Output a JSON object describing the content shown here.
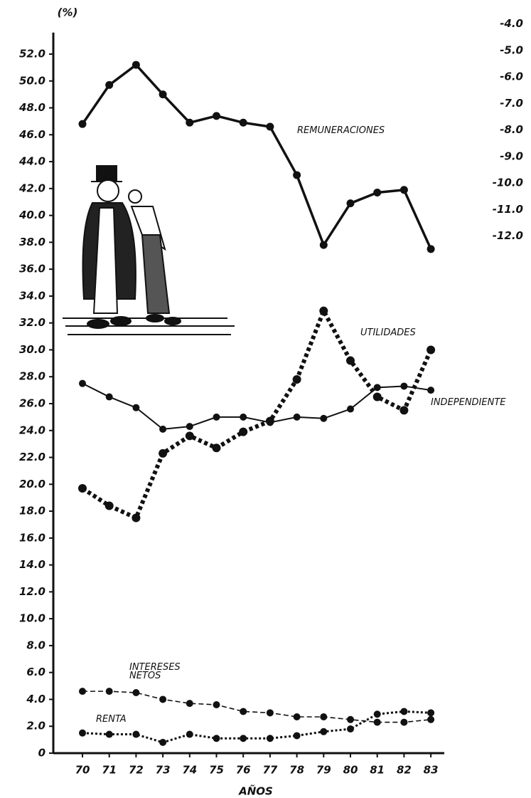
{
  "chart_data": {
    "type": "line",
    "y_label": "(%)",
    "x_label": "AÑOS",
    "categories": [
      "70",
      "71",
      "72",
      "73",
      "74",
      "75",
      "76",
      "77",
      "78",
      "79",
      "80",
      "81",
      "82",
      "83"
    ],
    "ylim": [
      0,
      53.6
    ],
    "yticks": [
      0,
      {
        "value": 2,
        "label": "2.0"
      },
      {
        "value": 4,
        "label": "4.0"
      },
      {
        "value": 6,
        "label": "6.0"
      },
      {
        "value": 8,
        "label": "8.0"
      },
      {
        "value": 10,
        "label": "10.0"
      },
      {
        "value": 12,
        "label": "12.0"
      },
      {
        "value": 14,
        "label": "14.0"
      },
      {
        "value": 16,
        "label": "16.0"
      },
      {
        "value": 18,
        "label": "18.0"
      },
      {
        "value": 20,
        "label": "20.0"
      },
      {
        "value": 22,
        "label": "22.0"
      },
      {
        "value": 24,
        "label": "24.0"
      },
      {
        "value": 26,
        "label": "26.0"
      },
      {
        "value": 28,
        "label": "28.0"
      },
      {
        "value": 30,
        "label": "30.0"
      },
      {
        "value": 32,
        "label": "32.0"
      },
      {
        "value": 34,
        "label": "34.0"
      },
      {
        "value": 36,
        "label": "36.0"
      },
      {
        "value": 38,
        "label": "38.0"
      },
      {
        "value": 40,
        "label": "40.0"
      },
      {
        "value": 42,
        "label": "42.0"
      },
      {
        "value": 44,
        "label": "44.0"
      },
      {
        "value": 46,
        "label": "46.0"
      },
      {
        "value": 48,
        "label": "48.0"
      },
      {
        "value": 50,
        "label": "50.0"
      },
      {
        "value": 52,
        "label": "52.0"
      }
    ],
    "y2lim": [
      -31.5,
      -3.1
    ],
    "y2ticks": [
      {
        "value": -4,
        "label": "-4.0"
      },
      {
        "value": -5,
        "label": "-5.0"
      },
      {
        "value": -6,
        "label": "-6.0"
      },
      {
        "value": -7,
        "label": "-7.0"
      },
      {
        "value": -8,
        "label": "-8.0"
      },
      {
        "value": -9,
        "label": "-9.0"
      },
      {
        "value": -10,
        "label": "-10.0"
      },
      {
        "value": -11,
        "label": "-11.0"
      },
      {
        "value": -12,
        "label": "-12.0"
      }
    ],
    "series": [
      {
        "name": "REMUNERACIONES",
        "color": "#111111",
        "line_style": "solid",
        "values": [
          46.8,
          49.7,
          51.2,
          49.0,
          46.9,
          47.4,
          46.9,
          46.6,
          43.0,
          37.8,
          40.9,
          41.7,
          41.9,
          37.5
        ]
      },
      {
        "name": "UTILIDADES",
        "color": "#111111",
        "line_style": "dotted",
        "values": [
          19.7,
          18.4,
          17.5,
          22.3,
          23.6,
          22.7,
          23.9,
          24.7,
          27.8,
          32.9,
          29.2,
          26.5,
          25.5,
          30.0
        ]
      },
      {
        "name": "INDEPENDIENTE",
        "color": "#111111",
        "line_style": "thin",
        "values": [
          27.5,
          26.5,
          25.7,
          24.1,
          24.3,
          25.0,
          25.0,
          24.6,
          25.0,
          24.9,
          25.6,
          27.2,
          27.3,
          27.0
        ]
      },
      {
        "name": "INTERESES NETOS",
        "color": "#111111",
        "line_style": "dashed",
        "values": [
          4.6,
          4.6,
          4.5,
          4.0,
          3.7,
          3.6,
          3.1,
          3.0,
          2.7,
          2.7,
          2.5,
          2.3,
          2.3,
          2.5
        ]
      },
      {
        "name": "RENTA",
        "color": "#111111",
        "line_style": "starred",
        "values": [
          1.5,
          1.4,
          1.4,
          0.8,
          1.4,
          1.1,
          1.1,
          1.1,
          1.3,
          1.6,
          1.8,
          2.9,
          3.1,
          3.0
        ]
      }
    ]
  }
}
